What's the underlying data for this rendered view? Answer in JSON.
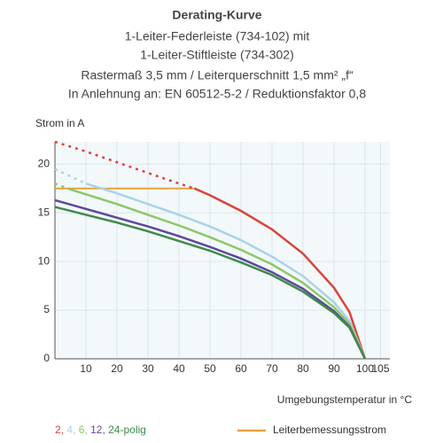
{
  "chart_data": {
    "type": "line",
    "title": "Derating-Kurve",
    "subtitle_lines": [
      "1-Leiter-Federleiste (734-102) mit",
      "1-Leiter-Stiftleiste (734-302)",
      "Rastermaß 3,5 mm / Leiterquerschnitt 1,5 mm² „f“",
      "In Anlehnung an: EN 60512-5-2 / Reduktionsfaktor 0,8"
    ],
    "y_label": "Strom in A",
    "x_label": "Umgebungstemperatur in °C",
    "xlim": [
      0,
      108
    ],
    "ylim": [
      0,
      22.3
    ],
    "xticks": [
      10,
      20,
      30,
      40,
      50,
      60,
      70,
      80,
      90,
      100,
      105
    ],
    "yticks": [
      0,
      5,
      10,
      15,
      20
    ],
    "grid": true,
    "legend_separator": ", ",
    "legend_suffix": "-polig",
    "series": [
      {
        "name": "2",
        "color": "#d9443a",
        "dashed_to_x": 45,
        "x": [
          0,
          10,
          20,
          30,
          40,
          45,
          50,
          60,
          70,
          80,
          90,
          95,
          100
        ],
        "values": [
          22.3,
          21.3,
          20.2,
          19.1,
          18.0,
          17.5,
          16.8,
          15.2,
          13.3,
          10.8,
          7.3,
          4.8,
          0
        ]
      },
      {
        "name": "4",
        "color": "#a9d3e8",
        "dashed_to_x": 10,
        "x": [
          0,
          10,
          20,
          30,
          40,
          50,
          60,
          70,
          80,
          90,
          95,
          100
        ],
        "values": [
          19.5,
          18.0,
          17.0,
          15.9,
          14.8,
          13.6,
          12.2,
          10.5,
          8.5,
          5.8,
          3.9,
          0
        ]
      },
      {
        "name": "6",
        "color": "#8cc866",
        "dashed_to_x": 5,
        "x": [
          0,
          5,
          10,
          20,
          30,
          40,
          50,
          60,
          70,
          80,
          90,
          95,
          100
        ],
        "values": [
          18.0,
          17.4,
          16.9,
          15.9,
          14.8,
          13.7,
          12.5,
          11.2,
          9.7,
          7.8,
          5.3,
          3.6,
          0
        ]
      },
      {
        "name": "12",
        "color": "#5b4a9a",
        "dashed_to_x": 0,
        "x": [
          0,
          10,
          20,
          30,
          40,
          50,
          60,
          70,
          80,
          90,
          95,
          100
        ],
        "values": [
          16.3,
          15.4,
          14.5,
          13.6,
          12.6,
          11.5,
          10.3,
          8.9,
          7.2,
          4.9,
          3.3,
          0
        ]
      },
      {
        "name": "24",
        "color": "#3f8a4a",
        "dashed_to_x": 0,
        "x": [
          0,
          10,
          20,
          30,
          40,
          50,
          60,
          70,
          80,
          90,
          95,
          100
        ],
        "values": [
          15.6,
          14.8,
          14.0,
          13.1,
          12.1,
          11.1,
          9.9,
          8.6,
          6.9,
          4.7,
          3.2,
          0
        ]
      }
    ],
    "reference_line": {
      "name": "Leiterbemessungsstrom",
      "color": "#e8a33c",
      "x": [
        0,
        45
      ],
      "values": [
        17.5,
        17.5
      ]
    }
  }
}
